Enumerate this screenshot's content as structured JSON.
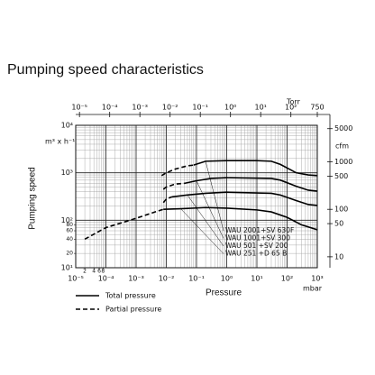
{
  "chart_data": {
    "type": "line",
    "title": "Pumping speed characteristics",
    "y_label": "Pumping speed",
    "y_unit": "m³ x h⁻¹",
    "x_label": "Pressure",
    "x_unit": "mbar",
    "x2_unit": "Torr",
    "y2_unit": "cfm",
    "log_x": true,
    "log_y": true,
    "grid": true,
    "xlim": [
      1e-05,
      1000
    ],
    "ylim": [
      10,
      10000
    ],
    "x2lim": [
      7.5e-06,
      750
    ],
    "y2lim": [
      5.886,
      5886
    ],
    "xticks": [
      {
        "value": 1e-05,
        "label": "10⁻⁵"
      },
      {
        "value": 0.0001,
        "label": "10⁻⁴"
      },
      {
        "value": 0.001,
        "label": "10⁻³"
      },
      {
        "value": 0.01,
        "label": "10⁻²"
      },
      {
        "value": 0.1,
        "label": "10⁻¹"
      },
      {
        "value": 1,
        "label": "10⁰"
      },
      {
        "value": 10,
        "label": "10¹"
      },
      {
        "value": 100,
        "label": "10²"
      },
      {
        "value": 1000,
        "label": "10³"
      }
    ],
    "xminorticks": [
      {
        "value": 2e-05,
        "label": "2"
      },
      {
        "value": 4e-05,
        "label": "4"
      },
      {
        "value": 6e-05,
        "label": "6"
      },
      {
        "value": 8e-05,
        "label": "8"
      }
    ],
    "yticks": [
      {
        "value": 10,
        "label": "10¹"
      },
      {
        "value": 100,
        "label": "10²"
      },
      {
        "value": 1000,
        "label": "10³"
      },
      {
        "value": 10000,
        "label": "10⁴"
      }
    ],
    "yminorticks": [
      20,
      40,
      60,
      80
    ],
    "x2ticks": [
      {
        "value": 1e-05,
        "label": "10⁻⁵"
      },
      {
        "value": 0.0001,
        "label": "10⁻⁴"
      },
      {
        "value": 0.001,
        "label": "10⁻³"
      },
      {
        "value": 0.01,
        "label": "10⁻²"
      },
      {
        "value": 0.1,
        "label": "10⁻¹"
      },
      {
        "value": 1,
        "label": "10⁰"
      },
      {
        "value": 10,
        "label": "10¹"
      },
      {
        "value": 100,
        "label": "10²"
      },
      750
    ],
    "y2ticks": [
      5000,
      1000,
      500,
      100,
      50,
      10
    ],
    "legend": {
      "solid": "Total pressure",
      "dashed": "Partial pressure"
    },
    "series": [
      {
        "name": "WAU 2001+SV 630F",
        "color": "#000000",
        "x": [
          0.08,
          0.2,
          1,
          10,
          30,
          60,
          200,
          500,
          1000
        ],
        "values": [
          1450,
          1750,
          1800,
          1800,
          1750,
          1500,
          1000,
          900,
          870
        ],
        "partial_x": [
          0.007,
          0.01,
          0.02,
          0.05,
          0.08
        ],
        "partial_values": [
          870,
          1000,
          1200,
          1400,
          1450
        ]
      },
      {
        "name": "WAU 1001+SV 300",
        "color": "#000000",
        "x": [
          0.04,
          0.1,
          0.3,
          1,
          30,
          60,
          200,
          500,
          1000
        ],
        "values": [
          600,
          680,
          760,
          790,
          760,
          700,
          520,
          430,
          410
        ],
        "partial_x": [
          0.008,
          0.01,
          0.02,
          0.04
        ],
        "partial_values": [
          450,
          500,
          580,
          600
        ]
      },
      {
        "name": "WAU 501 +SV 200",
        "color": "#000000",
        "x": [
          0.015,
          0.05,
          0.2,
          1,
          30,
          60,
          200,
          500,
          1000
        ],
        "values": [
          310,
          340,
          370,
          390,
          370,
          340,
          260,
          215,
          205
        ],
        "partial_x": [
          0.008,
          0.01,
          0.015
        ],
        "partial_values": [
          235,
          280,
          310
        ]
      },
      {
        "name": "WAU 251 +D 65 B",
        "color": "#000000",
        "x": [
          0.008,
          0.03,
          0.2,
          1,
          10,
          30,
          100,
          300,
          1000
        ],
        "values": [
          170,
          175,
          185,
          180,
          165,
          150,
          115,
          80,
          63
        ],
        "partial_x": [
          2e-05,
          0.0001,
          0.001,
          0.005,
          0.008
        ],
        "partial_values": [
          40,
          70,
          110,
          155,
          170
        ]
      }
    ]
  }
}
